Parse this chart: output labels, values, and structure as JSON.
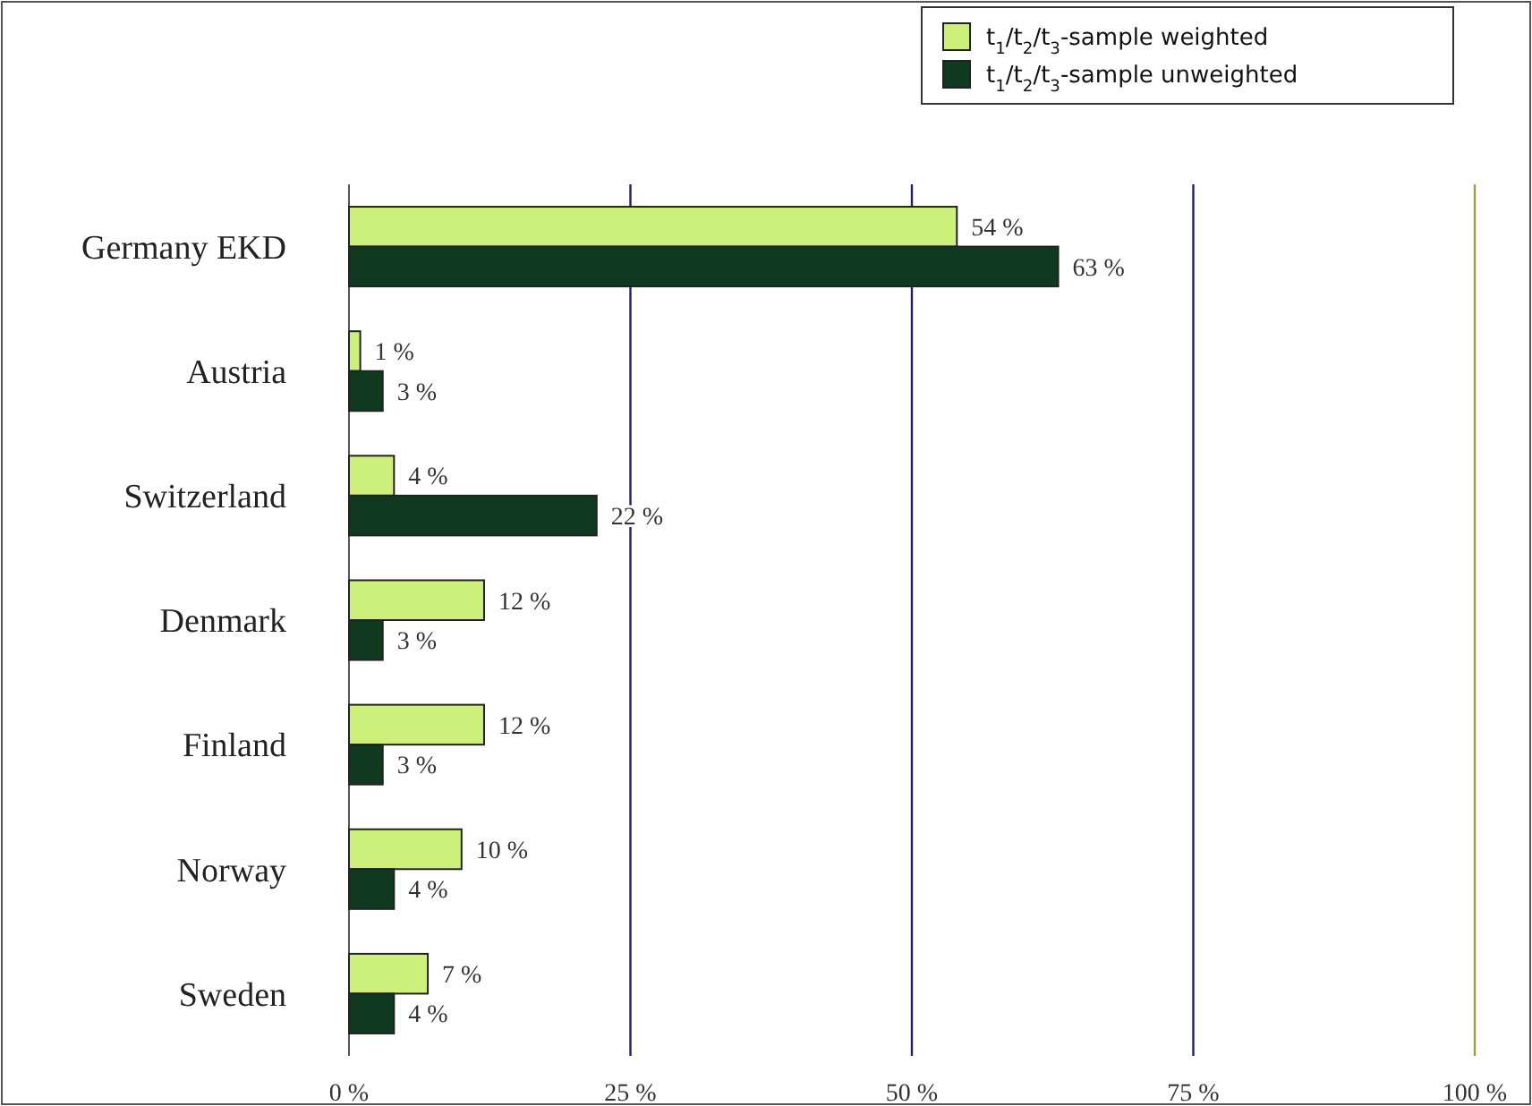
{
  "chart_data": {
    "type": "bar",
    "orientation": "horizontal",
    "categories": [
      "Germany EKD",
      "Austria",
      "Switzerland",
      "Denmark",
      "Finland",
      "Norway",
      "Sweden"
    ],
    "series": [
      {
        "name": "t$_{1}$/t$_{2}$/t$_{3}$-sample weighted",
        "color": "#ccf07a",
        "values": [
          54,
          1,
          4,
          12,
          12,
          10,
          7
        ],
        "value_labels": [
          "54 %",
          "1 %",
          "4 %",
          "12 %",
          "12 %",
          "10 %",
          "7 %"
        ]
      },
      {
        "name": "t$_{1}$/t$_{2}$/t$_{3}$-sample unweighted",
        "color": "#0f3a1f",
        "values": [
          63,
          3,
          22,
          3,
          3,
          4,
          4
        ],
        "value_labels": [
          "63 %",
          "3 %",
          "22 %",
          "3 %",
          "3 %",
          "4 %",
          "4 %"
        ]
      }
    ],
    "xlim": [
      0,
      100
    ],
    "xticks": [
      {
        "value": 0,
        "label": "0 %"
      },
      {
        "value": 25,
        "label": "25 %"
      },
      {
        "value": 50,
        "label": "50 %"
      },
      {
        "value": 75,
        "label": "75 %"
      },
      {
        "value": 100,
        "label": "100 %"
      }
    ],
    "grid": "x",
    "legend": "top right"
  }
}
